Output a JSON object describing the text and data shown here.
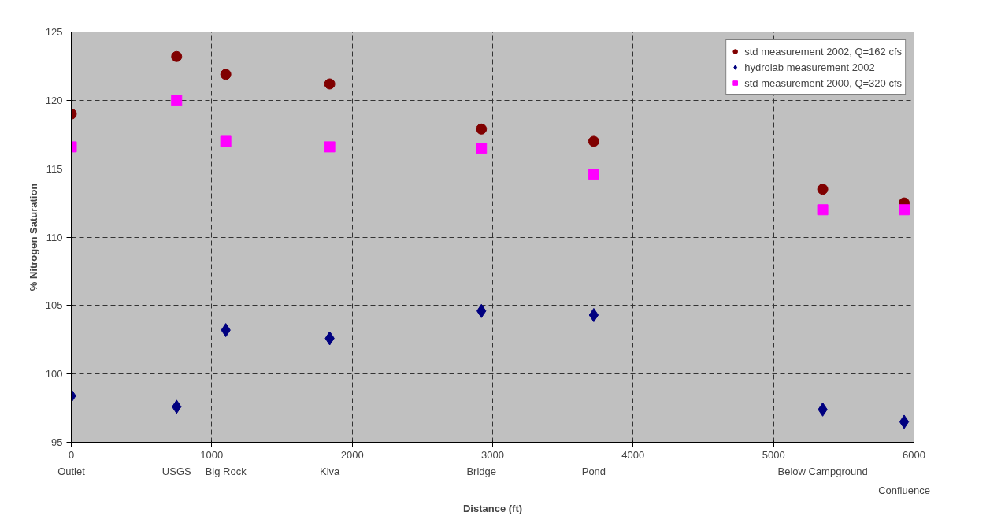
{
  "chart_data": {
    "type": "scatter",
    "xlabel": "Distance (ft)",
    "ylabel": "% Nitrogen Saturation",
    "x": [
      0,
      750,
      1100,
      1840,
      2920,
      3720,
      5350,
      5930
    ],
    "series": [
      {
        "name": "std measurement 2002, Q=162 cfs",
        "color": "#800000",
        "marker": "circle",
        "values": [
          119.0,
          123.2,
          121.9,
          121.2,
          117.9,
          117.0,
          113.5,
          112.5
        ]
      },
      {
        "name": "hydrolab measurement 2002",
        "color": "#000080",
        "marker": "diamond",
        "values": [
          98.4,
          97.6,
          103.2,
          102.6,
          104.6,
          104.3,
          97.4,
          96.5
        ]
      },
      {
        "name": "std measurement 2000, Q=320 cfs",
        "color": "#ff00ff",
        "marker": "square",
        "values": [
          116.6,
          120.0,
          117.0,
          116.6,
          116.5,
          114.6,
          112.0,
          112.0
        ]
      }
    ],
    "xlim": [
      0,
      6000
    ],
    "xticks": [
      0,
      1000,
      2000,
      3000,
      4000,
      5000,
      6000
    ],
    "ylim": [
      95,
      125
    ],
    "yticks": [
      95,
      100,
      105,
      110,
      115,
      120,
      125
    ],
    "grid": true,
    "legend": "top right",
    "annotations": [
      "Outlet",
      "USGS",
      "Big Rock",
      "Kiva",
      "Bridge",
      "Pond",
      "Below Campground",
      "Confluence"
    ]
  }
}
